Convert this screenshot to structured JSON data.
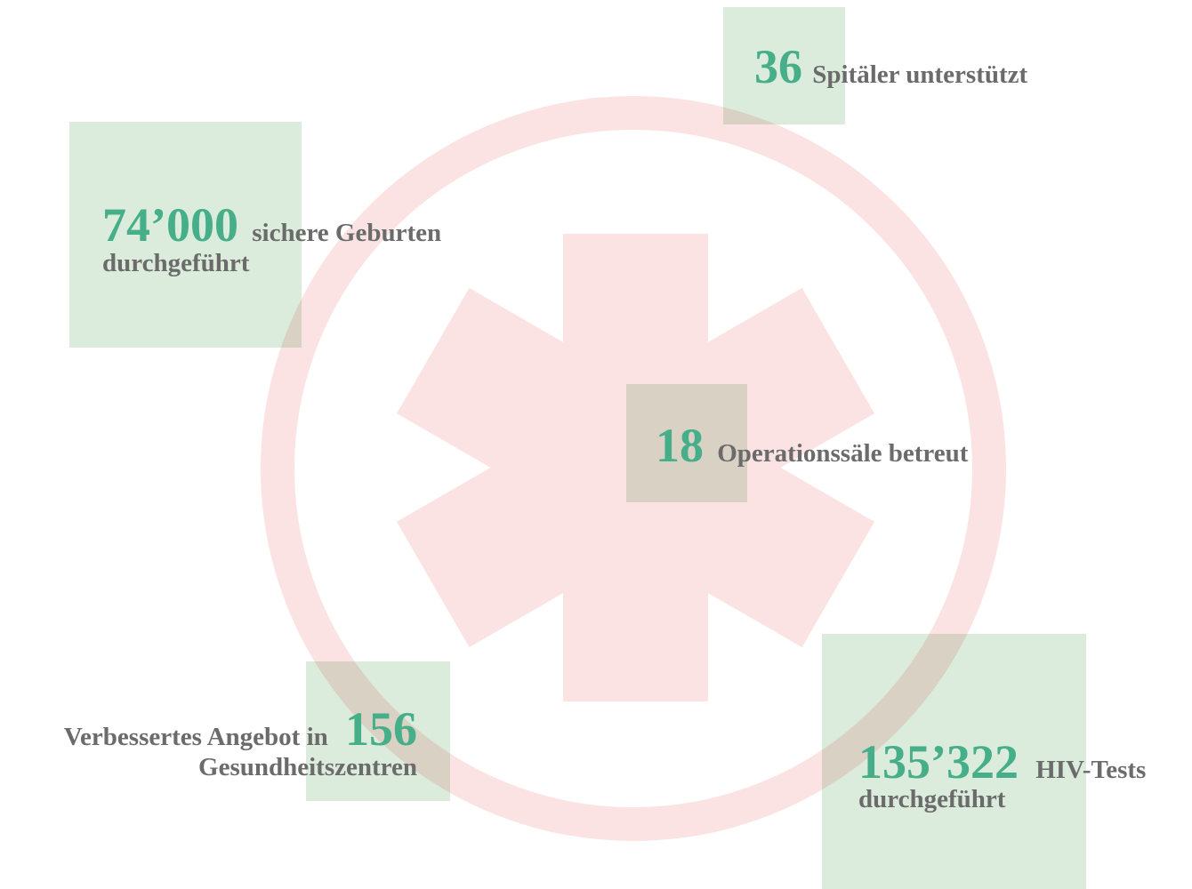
{
  "stats": [
    {
      "number": "36",
      "lines": [
        "Spitäler unterstützt"
      ]
    },
    {
      "number": "74’000",
      "lines": [
        "sichere Geburten",
        "durchgeführt"
      ]
    },
    {
      "number": "18",
      "lines": [
        "Operationssäle betreut"
      ]
    },
    {
      "number": "156",
      "lines": [
        "Verbessertes Angebot in",
        "Gesundheitszentren"
      ]
    },
    {
      "number": "135’322",
      "lines": [
        "HIV-Tests",
        "durchgeführt"
      ]
    }
  ]
}
